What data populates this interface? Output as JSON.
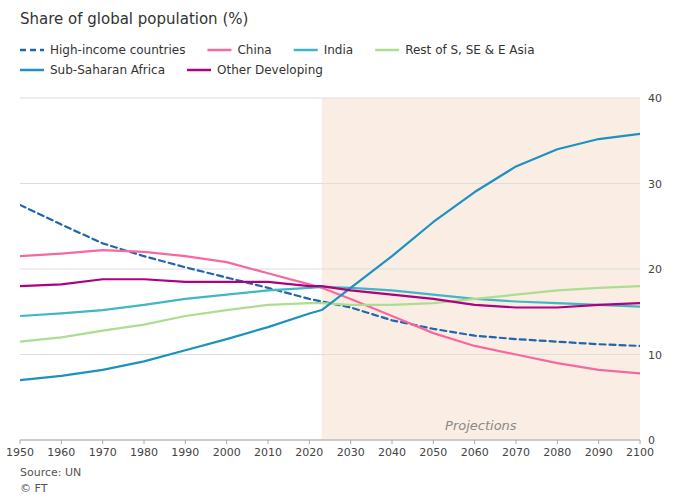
{
  "chart_data": {
    "type": "line",
    "title": "Share of global population (%)",
    "source": "Source: UN",
    "copyright": "© FT",
    "x": [
      1950,
      1960,
      1970,
      1980,
      1990,
      2000,
      2010,
      2020,
      2023,
      2030,
      2040,
      2050,
      2060,
      2070,
      2080,
      2090,
      2100
    ],
    "series": [
      {
        "name": "High-income countries",
        "color": "#2166ac",
        "line_style": "dashed",
        "values": [
          27.5,
          25.2,
          23.0,
          21.5,
          20.2,
          19.0,
          17.8,
          16.5,
          16.2,
          15.5,
          14.0,
          13.0,
          12.2,
          11.8,
          11.5,
          11.2,
          11.0
        ]
      },
      {
        "name": "China",
        "color": "#f768a1",
        "line_style": "solid",
        "values": [
          21.5,
          21.8,
          22.2,
          22.0,
          21.5,
          20.8,
          19.5,
          18.2,
          17.8,
          16.5,
          14.5,
          12.5,
          11.0,
          10.0,
          9.0,
          8.2,
          7.8
        ]
      },
      {
        "name": "India",
        "color": "#41b6c4",
        "line_style": "solid",
        "values": [
          14.5,
          14.8,
          15.2,
          15.8,
          16.5,
          17.0,
          17.5,
          17.8,
          17.9,
          17.8,
          17.5,
          17.0,
          16.5,
          16.2,
          16.0,
          15.8,
          15.6
        ]
      },
      {
        "name": "Rest of S, SE & E Asia",
        "color": "#addd8e",
        "line_style": "solid",
        "values": [
          11.5,
          12.0,
          12.8,
          13.5,
          14.5,
          15.2,
          15.8,
          16.0,
          16.0,
          15.8,
          15.8,
          16.0,
          16.5,
          17.0,
          17.5,
          17.8,
          18.0
        ]
      },
      {
        "name": "Sub-Saharan Africa",
        "color": "#1d91c0",
        "line_style": "solid",
        "values": [
          7.0,
          7.5,
          8.2,
          9.2,
          10.5,
          11.8,
          13.2,
          14.8,
          15.2,
          17.8,
          21.5,
          25.5,
          29.0,
          32.0,
          34.0,
          35.2,
          35.8
        ]
      },
      {
        "name": "Other Developing",
        "color": "#ae017e",
        "line_style": "solid",
        "values": [
          18.0,
          18.2,
          18.8,
          18.8,
          18.5,
          18.5,
          18.5,
          18.0,
          18.0,
          17.5,
          17.0,
          16.5,
          15.8,
          15.5,
          15.5,
          15.8,
          16.0
        ]
      }
    ],
    "annotations": [
      {
        "text": "Projections",
        "x_start": 2023,
        "x_end": 2100,
        "color": "#faeee4"
      }
    ],
    "xlim": [
      1950,
      2100
    ],
    "xticks": [
      1950,
      1960,
      1970,
      1980,
      1990,
      2000,
      2010,
      2020,
      2030,
      2040,
      2050,
      2060,
      2070,
      2080,
      2090,
      2100
    ],
    "ylim": [
      0,
      40
    ],
    "yticks": [
      0,
      10,
      20,
      30,
      40
    ],
    "grid": true,
    "legend": "top"
  }
}
